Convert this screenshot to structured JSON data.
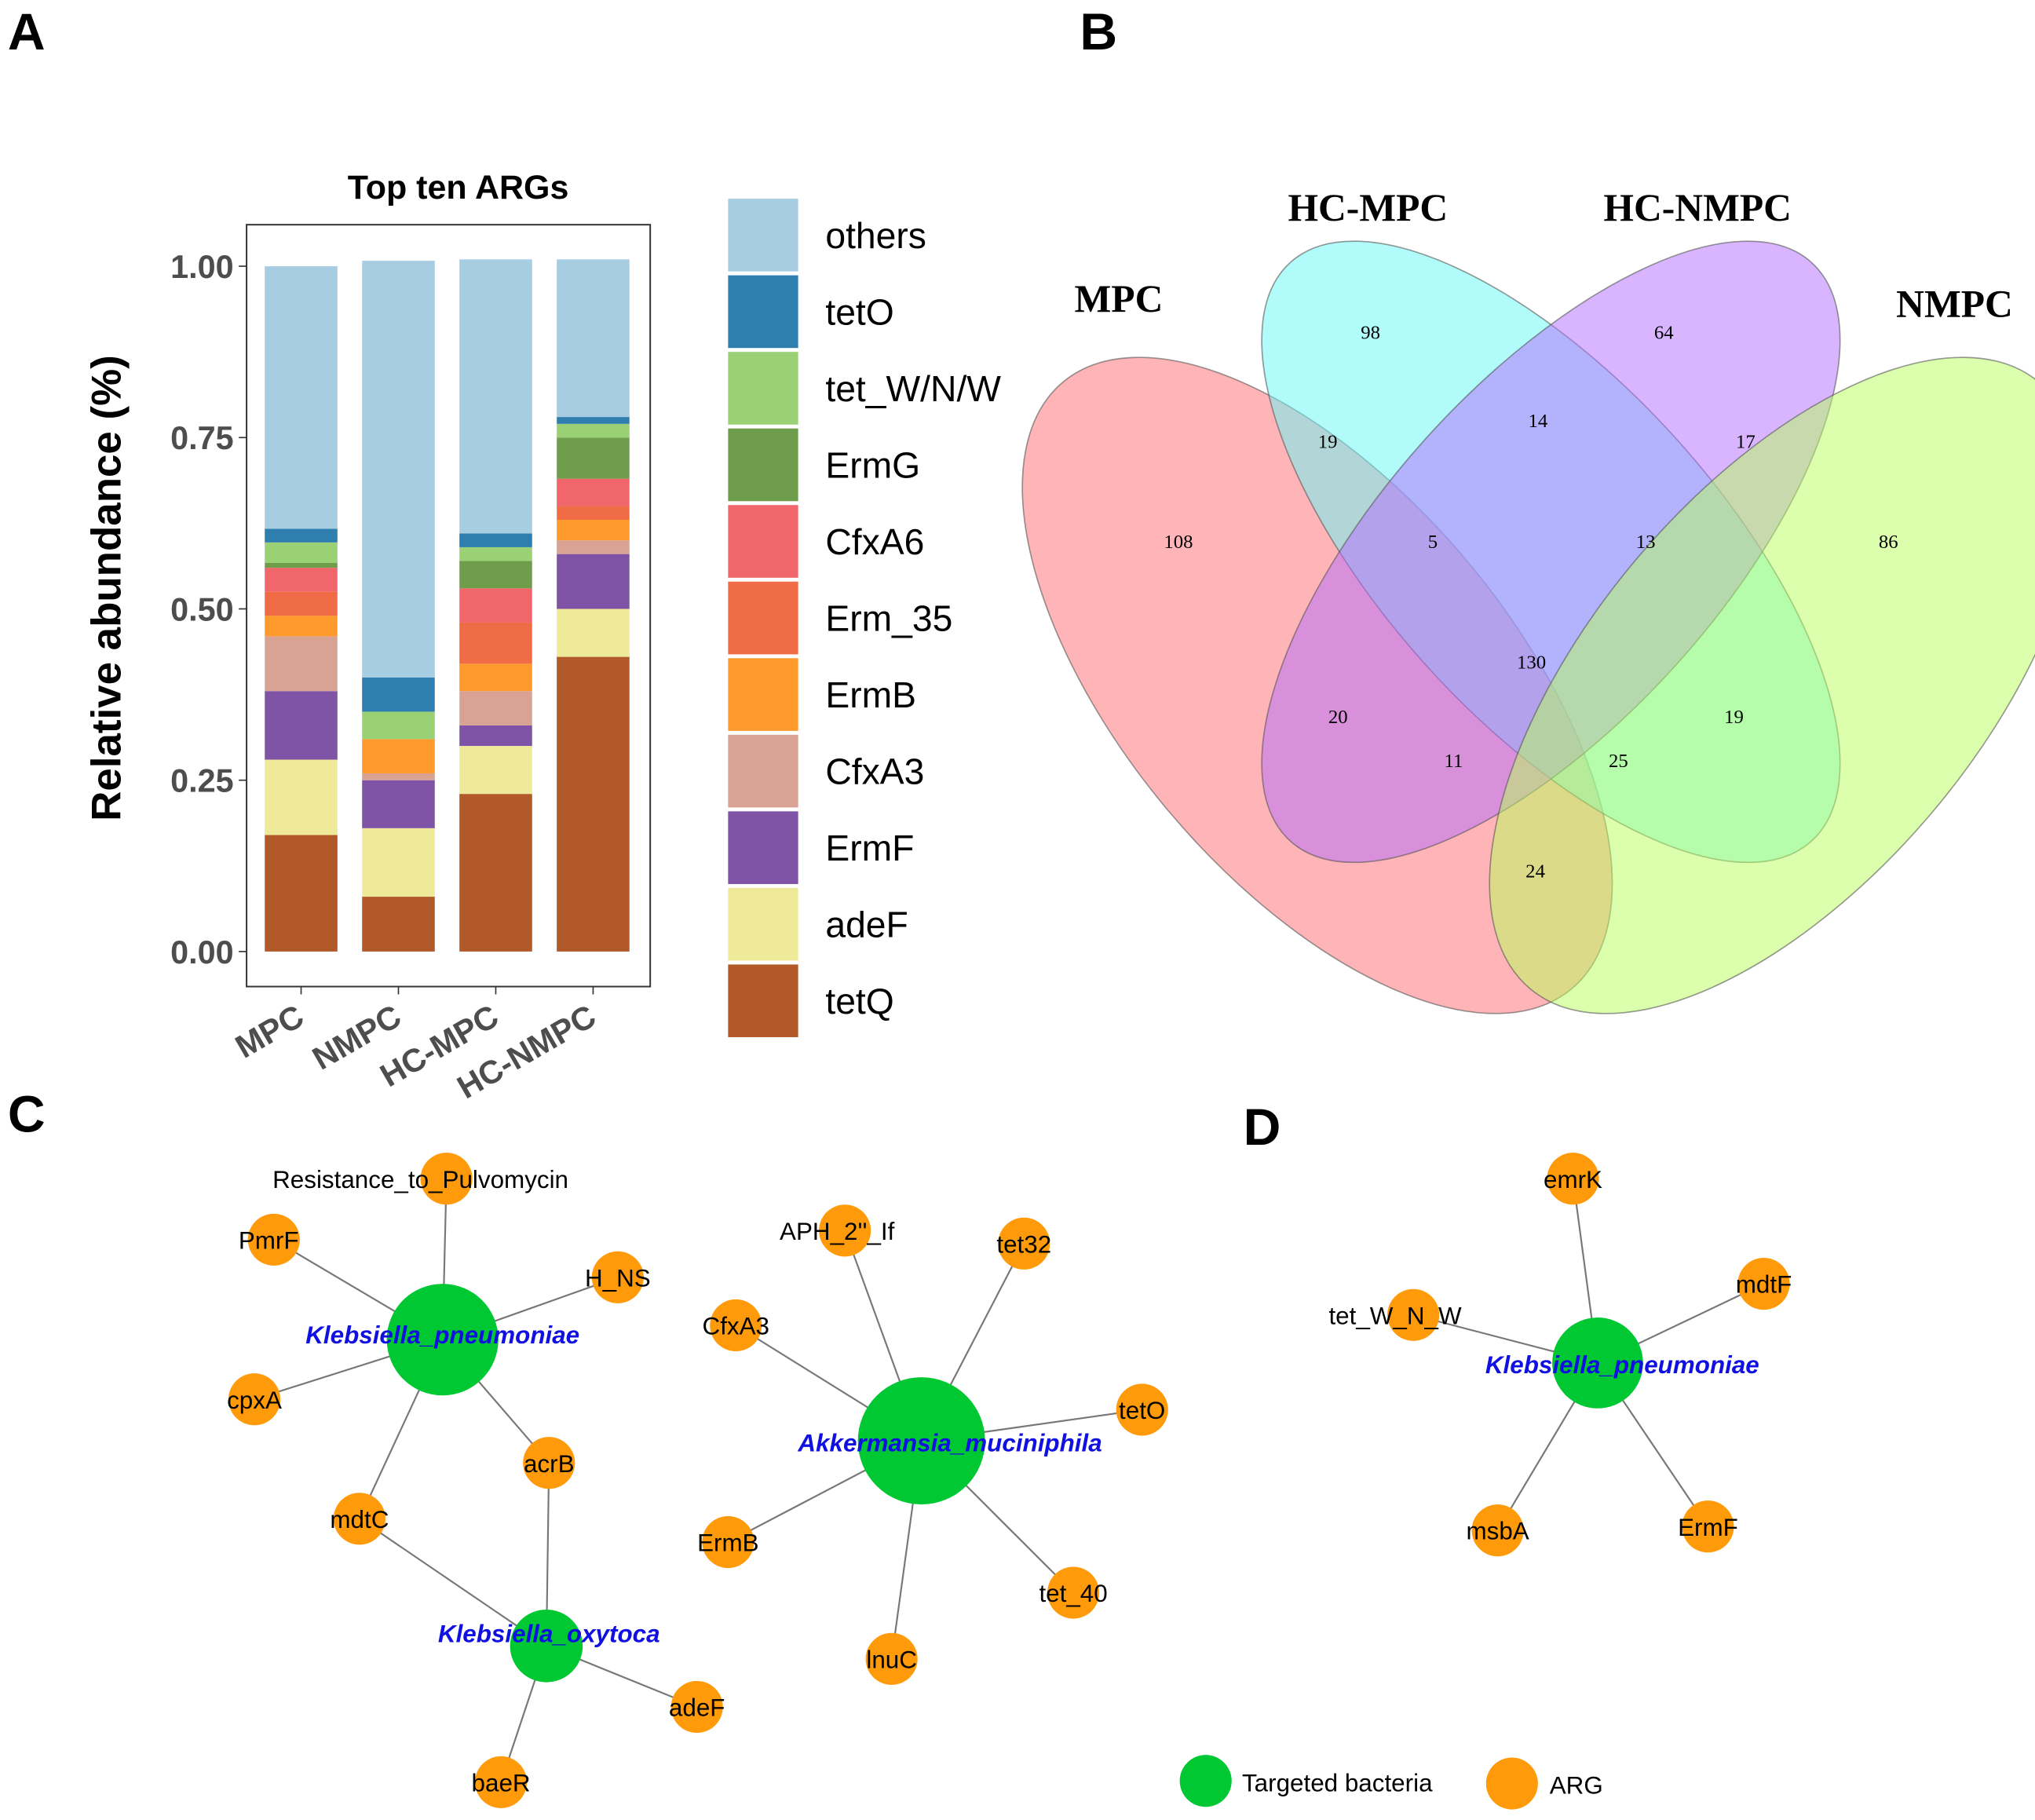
{
  "panels": {
    "a": "A",
    "b": "B",
    "c": "C",
    "d": "D"
  },
  "colors": {
    "bacteria": "#00c832",
    "arg": "#ff9a0a",
    "edge": "#777777",
    "bacteria_label": "#1010e0"
  },
  "chart_data": [
    {
      "type": "bar",
      "stacked": true,
      "title": "Top ten ARGs",
      "xlabel": "",
      "ylabel": "Relative abundance (%)",
      "ylim": [
        0,
        1.05
      ],
      "yticks": [
        "0.00",
        "0.25",
        "0.50",
        "0.75",
        "1.00"
      ],
      "categories": [
        "MPC",
        "NMPC",
        "HC-MPC",
        "HC-NMPC"
      ],
      "legend_placement": "right",
      "series": [
        {
          "name": "tetQ",
          "color": "#b15928",
          "values": [
            0.17,
            0.08,
            0.23,
            0.43
          ]
        },
        {
          "name": "adeF",
          "color": "#eeea99",
          "values": [
            0.11,
            0.1,
            0.07,
            0.07
          ]
        },
        {
          "name": "ErmF",
          "color": "#7f53a5",
          "values": [
            0.1,
            0.07,
            0.03,
            0.08
          ]
        },
        {
          "name": "CfxA3",
          "color": "#d9a394",
          "values": [
            0.08,
            0.01,
            0.05,
            0.02
          ]
        },
        {
          "name": "ErmB",
          "color": "#fe992b",
          "values": [
            0.03,
            0.05,
            0.04,
            0.03
          ]
        },
        {
          "name": "Erm_35",
          "color": "#ef6c46",
          "values": [
            0.035,
            0.0,
            0.06,
            0.02
          ]
        },
        {
          "name": "CfxA6",
          "color": "#f0666a",
          "values": [
            0.035,
            0.0,
            0.05,
            0.04
          ]
        },
        {
          "name": "ErmG",
          "color": "#6e9e4b",
          "values": [
            0.007,
            0.0,
            0.04,
            0.06
          ]
        },
        {
          "name": "tet_W/N/W",
          "color": "#99d174",
          "values": [
            0.03,
            0.04,
            0.02,
            0.02
          ]
        },
        {
          "name": "tetO",
          "color": "#2e7fb0",
          "values": [
            0.02,
            0.05,
            0.02,
            0.01
          ]
        },
        {
          "name": "others",
          "color": "#a7cde2",
          "values": [
            0.383,
            0.608,
            0.4,
            0.23
          ]
        }
      ]
    },
    {
      "type": "venn",
      "sets": [
        {
          "name": "MPC",
          "color": "#ff6b70"
        },
        {
          "name": "HC-MPC",
          "color": "#66f8f8"
        },
        {
          "name": "HC-NMPC",
          "color": "#b36bff"
        },
        {
          "name": "NMPC",
          "color": "#b8ff5c"
        }
      ],
      "regions": [
        {
          "sets": [
            "MPC"
          ],
          "count": "108"
        },
        {
          "sets": [
            "HC-MPC"
          ],
          "count": "98"
        },
        {
          "sets": [
            "HC-NMPC"
          ],
          "count": "64"
        },
        {
          "sets": [
            "NMPC"
          ],
          "count": "86"
        },
        {
          "sets": [
            "MPC",
            "HC-MPC"
          ],
          "count": "19"
        },
        {
          "sets": [
            "HC-MPC",
            "HC-NMPC"
          ],
          "count": "14"
        },
        {
          "sets": [
            "HC-NMPC",
            "NMPC"
          ],
          "count": "17"
        },
        {
          "sets": [
            "MPC",
            "HC-MPC",
            "HC-NMPC"
          ],
          "count": "5"
        },
        {
          "sets": [
            "HC-MPC",
            "HC-NMPC",
            "NMPC"
          ],
          "count": "13"
        },
        {
          "sets": [
            "MPC",
            "HC-MPC",
            "HC-NMPC",
            "NMPC"
          ],
          "count": "130"
        },
        {
          "sets": [
            "MPC",
            "HC-NMPC"
          ],
          "count": "20"
        },
        {
          "sets": [
            "HC-MPC",
            "NMPC"
          ],
          "count": "19"
        },
        {
          "sets": [
            "MPC",
            "HC-NMPC",
            "NMPC"
          ],
          "count": "11"
        },
        {
          "sets": [
            "MPC",
            "HC-MPC",
            "NMPC"
          ],
          "count": "25"
        },
        {
          "sets": [
            "MPC",
            "NMPC"
          ],
          "count": "24"
        }
      ]
    }
  ],
  "networks": {
    "c": {
      "bacteria": [
        "Klebsiella_pneumoniae",
        "Klebsiella_oxytoca",
        "Akkermansia_muciniphila"
      ],
      "args": [
        "Resistance_to_Pulvomycin",
        "PmrF",
        "H_NS",
        "cpxA",
        "acrB",
        "mdtC",
        "adeF",
        "baeR",
        "APH_2''_If",
        "tet32",
        "CfxA3",
        "tetO",
        "ErmB",
        "tet_40",
        "lnuC"
      ],
      "edges": [
        [
          "Klebsiella_pneumoniae",
          "Resistance_to_Pulvomycin"
        ],
        [
          "Klebsiella_pneumoniae",
          "PmrF"
        ],
        [
          "Klebsiella_pneumoniae",
          "H_NS"
        ],
        [
          "Klebsiella_pneumoniae",
          "cpxA"
        ],
        [
          "Klebsiella_pneumoniae",
          "acrB"
        ],
        [
          "Klebsiella_pneumoniae",
          "mdtC"
        ],
        [
          "Klebsiella_oxytoca",
          "acrB"
        ],
        [
          "Klebsiella_oxytoca",
          "mdtC"
        ],
        [
          "Klebsiella_oxytoca",
          "adeF"
        ],
        [
          "Klebsiella_oxytoca",
          "baeR"
        ],
        [
          "Akkermansia_muciniphila",
          "APH_2''_If"
        ],
        [
          "Akkermansia_muciniphila",
          "tet32"
        ],
        [
          "Akkermansia_muciniphila",
          "CfxA3"
        ],
        [
          "Akkermansia_muciniphila",
          "tetO"
        ],
        [
          "Akkermansia_muciniphila",
          "ErmB"
        ],
        [
          "Akkermansia_muciniphila",
          "tet_40"
        ],
        [
          "Akkermansia_muciniphila",
          "lnuC"
        ]
      ]
    },
    "d": {
      "bacteria": [
        "Klebsiella_pneumoniae"
      ],
      "args": [
        "emrK",
        "mdtF",
        "tet_W_N_W",
        "msbA",
        "ErmF"
      ],
      "edges": [
        [
          "Klebsiella_pneumoniae",
          "emrK"
        ],
        [
          "Klebsiella_pneumoniae",
          "mdtF"
        ],
        [
          "Klebsiella_pneumoniae",
          "tet_W_N_W"
        ],
        [
          "Klebsiella_pneumoniae",
          "msbA"
        ],
        [
          "Klebsiella_pneumoniae",
          "ErmF"
        ]
      ]
    }
  },
  "legend": {
    "bacteria": "Targeted bacteria",
    "arg": "ARG"
  }
}
